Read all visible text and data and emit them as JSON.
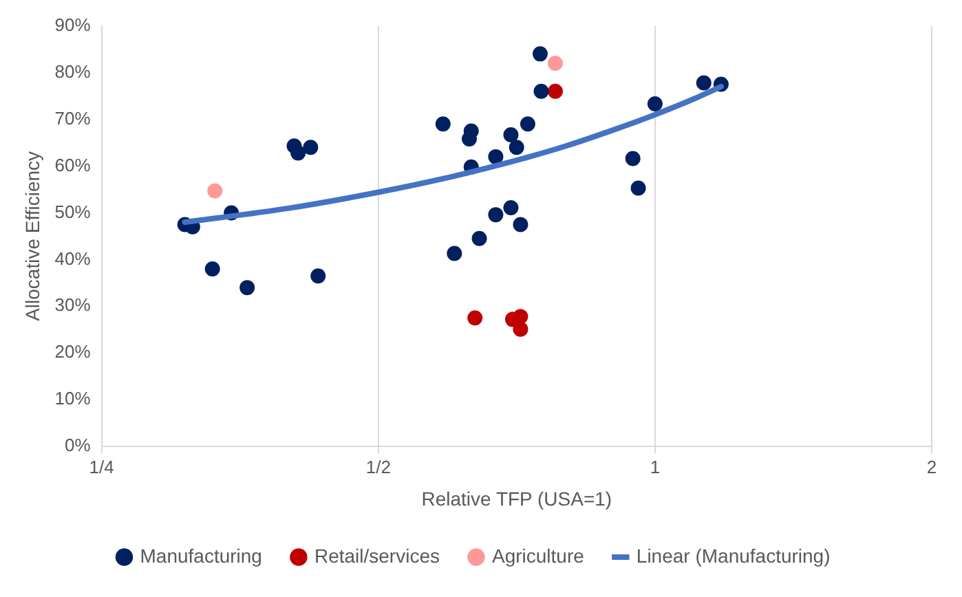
{
  "chart_data": {
    "type": "scatter",
    "xlabel": "Relative TFP (USA=1)",
    "ylabel": "Allocative Efficiency",
    "log": "x",
    "grid": "x",
    "legend": "bottom",
    "marker": "circle",
    "xlim": [
      0.25,
      2
    ],
    "xticks": [
      {
        "value": 0.25,
        "label": "1/4"
      },
      {
        "value": 0.5,
        "label": "1/2"
      },
      1,
      2
    ],
    "ylim": [
      0,
      90
    ],
    "yticks": [
      {
        "value": 0,
        "label": "0%"
      },
      {
        "value": 10,
        "label": "10%"
      },
      {
        "value": 20,
        "label": "20%"
      },
      {
        "value": 30,
        "label": "30%"
      },
      {
        "value": 40,
        "label": "40%"
      },
      {
        "value": 50,
        "label": "50%"
      },
      {
        "value": 60,
        "label": "60%"
      },
      {
        "value": 70,
        "label": "70%"
      },
      {
        "value": 80,
        "label": "80%"
      },
      {
        "value": 90,
        "label": "90%"
      }
    ],
    "series": [
      {
        "name": "Manufacturing",
        "color": "#002060",
        "x": [
          0.308,
          0.314,
          0.33,
          0.346,
          0.36,
          0.405,
          0.409,
          0.422,
          0.43,
          0.588,
          0.605,
          0.628,
          0.631,
          0.631,
          0.644,
          0.671,
          0.671,
          0.697,
          0.697,
          0.707,
          0.714,
          0.727,
          0.75,
          0.752,
          0.946,
          0.959,
          1.0,
          1.13,
          1.18
        ],
        "values": [
          47.5,
          47,
          38,
          50,
          34,
          64.3,
          62.8,
          64,
          36.5,
          69,
          41.3,
          65.8,
          67.5,
          59.8,
          44.5,
          62,
          49.6,
          66.7,
          51.1,
          64,
          47.5,
          69,
          84,
          76,
          61.6,
          55.3,
          73.3,
          77.8,
          77.5
        ]
      },
      {
        "name": "Retail/services",
        "color": "#c00000",
        "x": [
          0.637,
          0.7,
          0.714,
          0.714,
          0.779
        ],
        "values": [
          27.5,
          27.2,
          27.8,
          25.1,
          76
        ]
      },
      {
        "name": "Agriculture",
        "color": "#ff9999",
        "x": [
          0.332,
          0.779
        ],
        "values": [
          54.7,
          82
        ]
      },
      {
        "name": "Linear (Manufacturing)",
        "type": "line",
        "marker": "none",
        "color": "#4472c4",
        "x": [
          0.308,
          0.4,
          0.5,
          0.6,
          0.7,
          0.8,
          0.9,
          1.0,
          1.1,
          1.18
        ],
        "values": [
          48.0,
          51.0,
          54.4,
          57.7,
          61.0,
          64.3,
          67.7,
          71.0,
          74.3,
          77.0
        ]
      }
    ]
  }
}
